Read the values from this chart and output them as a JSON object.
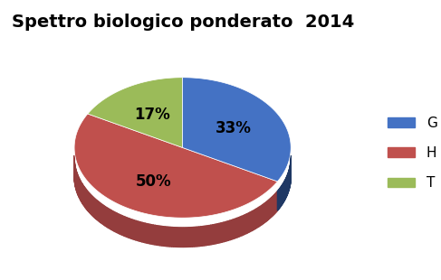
{
  "title": "Spettro biologico ponderato  2014",
  "slices": [
    33,
    50,
    17
  ],
  "labels": [
    "G",
    "H",
    "T"
  ],
  "colors": [
    "#4472C4",
    "#C0504D",
    "#9BBB59"
  ],
  "shadow_colors": [
    "#1F3864",
    "#943D3D",
    "#4D5E1F"
  ],
  "pct_labels": [
    "33%",
    "50%",
    "17%"
  ],
  "legend_labels": [
    "G",
    "H",
    "T"
  ],
  "startangle": 90,
  "background_color": "#FFFFFF",
  "title_fontsize": 14,
  "legend_fontsize": 11,
  "pct_fontsize": 12
}
